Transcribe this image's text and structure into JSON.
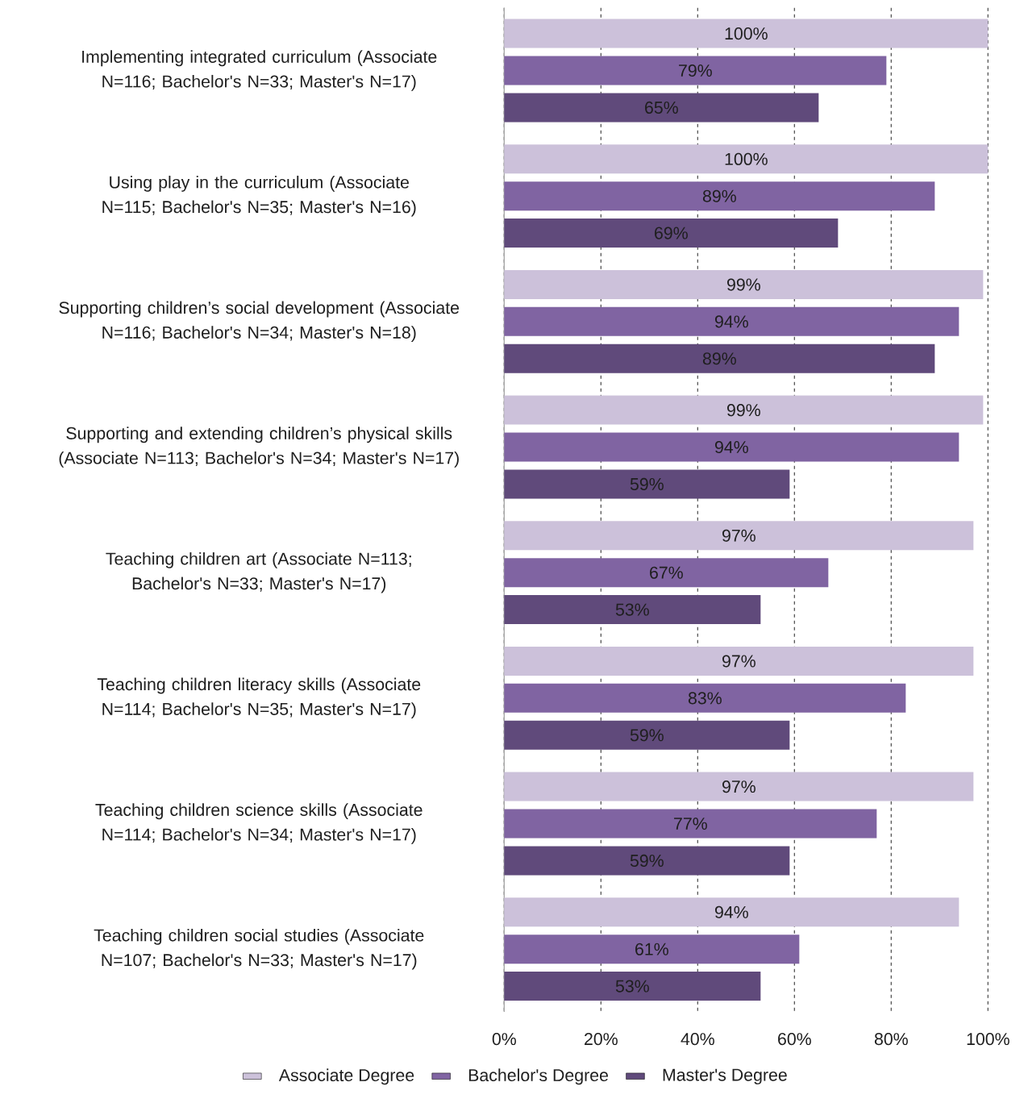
{
  "chart_data": {
    "type": "bar",
    "orientation": "horizontal",
    "categories": [
      "Implementing integrated curriculum (Associate N=116; Bachelor's N=33; Master's N=17)",
      "Using play in the curriculum (Associate N=115; Bachelor's N=35; Master's N=16)",
      "Supporting children’s social development (Associate N=116; Bachelor's N=34; Master's N=18)",
      "Supporting and extending children’s physical skills (Associate N=113; Bachelor's N=34; Master's N=17)",
      "Teaching children art (Associate N=113; Bachelor's N=33; Master's N=17)",
      "Teaching children literacy skills (Associate N=114; Bachelor's N=35; Master's N=17)",
      "Teaching children science skills (Associate N=114; Bachelor's N=34; Master's N=17)",
      "Teaching children social studies (Associate N=107; Bachelor's N=33; Master's N=17)"
    ],
    "series": [
      {
        "name": "Associate Degree",
        "color": "#ccc1da",
        "values": [
          100,
          100,
          99,
          99,
          97,
          97,
          97,
          94
        ],
        "value_labels": [
          "100%",
          "100%",
          "99%",
          "99%",
          "97%",
          "97%",
          "97%",
          "94%"
        ]
      },
      {
        "name": "Bachelor's Degree",
        "color": "#8064a2",
        "values": [
          79,
          89,
          94,
          94,
          67,
          83,
          77,
          61
        ],
        "value_labels": [
          "79%",
          "89%",
          "94%",
          "94%",
          "67%",
          "83%",
          "77%",
          "61%"
        ]
      },
      {
        "name": "Master's Degree",
        "color": "#604a7b",
        "values": [
          65,
          69,
          89,
          59,
          53,
          59,
          59,
          53
        ],
        "value_labels": [
          "65%",
          "69%",
          "89%",
          "59%",
          "53%",
          "59%",
          "59%",
          "53%"
        ]
      }
    ],
    "xlim": [
      0,
      100
    ],
    "xticks": [
      {
        "value": 0,
        "label": "0%"
      },
      {
        "value": 20,
        "label": "20%"
      },
      {
        "value": 40,
        "label": "40%"
      },
      {
        "value": 60,
        "label": "60%"
      },
      {
        "value": 80,
        "label": "80%"
      },
      {
        "value": 100,
        "label": "100%"
      }
    ],
    "grid": "x",
    "legend": "bottom"
  }
}
